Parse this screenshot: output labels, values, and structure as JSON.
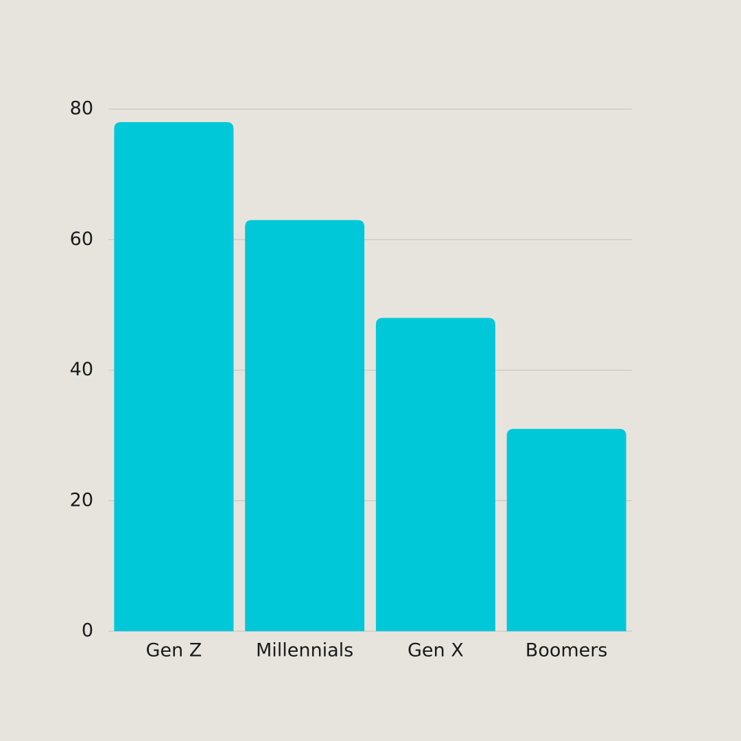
{
  "chart_data": {
    "type": "bar",
    "categories": [
      "Gen Z",
      "Millennials",
      "Gen X",
      "Boomers"
    ],
    "values": [
      78,
      63,
      48,
      31
    ],
    "color": "#00c8d8",
    "ylim": [
      0,
      80
    ],
    "yticks": [
      0,
      20,
      40,
      60,
      80
    ],
    "grid": true
  }
}
